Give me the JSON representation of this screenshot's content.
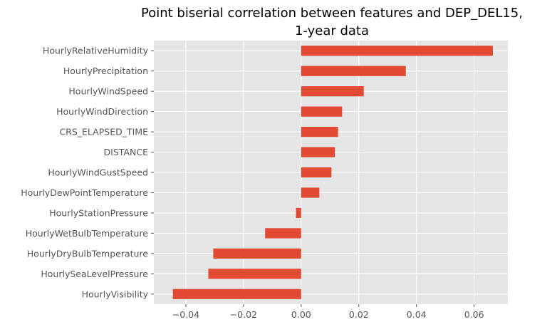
{
  "chart_data": {
    "type": "bar",
    "orientation": "horizontal",
    "title_lines": [
      "Point biserial correlation between features and DEP_DEL15,",
      "1-year data"
    ],
    "xlabel": "",
    "ylabel": "",
    "categories": [
      "HourlyRelativeHumidity",
      "HourlyPrecipitation",
      "HourlyWindSpeed",
      "HourlyWindDirection",
      "CRS_ELAPSED_TIME",
      "DISTANCE",
      "HourlyWindGustSpeed",
      "HourlyDewPointTemperature",
      "HourlyStationPressure",
      "HourlyWetBulbTemperature",
      "HourlyDryBulbTemperature",
      "HourlySeaLevelPressure",
      "HourlyVisibility"
    ],
    "values": [
      0.0665,
      0.0363,
      0.0217,
      0.0142,
      0.0128,
      0.0117,
      0.0105,
      0.0063,
      -0.0018,
      -0.0125,
      -0.0305,
      -0.0322,
      -0.0445
    ],
    "xlim": [
      -0.0511,
      0.0717
    ],
    "xticks": [
      -0.04,
      -0.02,
      0.0,
      0.02,
      0.04,
      0.06
    ],
    "xtick_labels": [
      "−0.04",
      "−0.02",
      "0.00",
      "0.02",
      "0.04",
      "0.06"
    ],
    "grid": true,
    "style": "ggplot",
    "colors": {
      "bar": "#E24A33",
      "plot_background": "#E5E5E5",
      "grid": "#FFFFFF",
      "tick_text": "#555555",
      "title_text": "#000000"
    }
  }
}
